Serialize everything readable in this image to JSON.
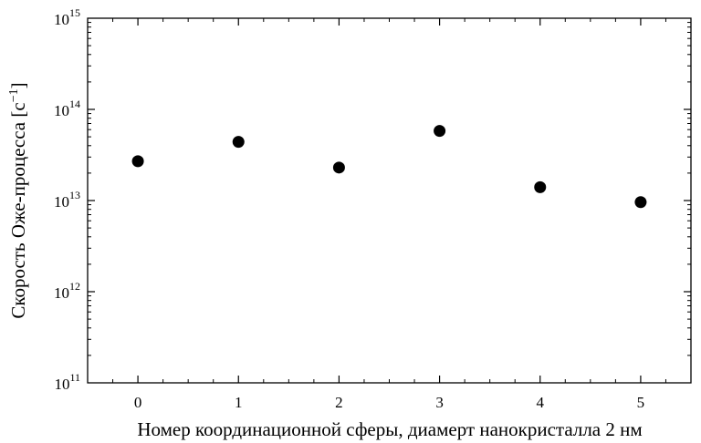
{
  "chart_data": {
    "type": "scatter",
    "xlabel": "Номер координационной сферы, диамерт нанокристалла 2 нм",
    "ylabel": {
      "text": "Скорость Оже-процесса [с",
      "superscript": "−1",
      "close": "]"
    },
    "xlim": [
      -0.5,
      5.5
    ],
    "ylim": [
      100000000000.0,
      1000000000000000.0
    ],
    "yscale": "log",
    "xticks": [
      {
        "value": 0,
        "label": "0"
      },
      {
        "value": 1,
        "label": "1"
      },
      {
        "value": 2,
        "label": "2"
      },
      {
        "value": 3,
        "label": "3"
      },
      {
        "value": 4,
        "label": "4"
      },
      {
        "value": 5,
        "label": "5"
      }
    ],
    "yticks": [
      {
        "value": 100000000000.0,
        "base": "10",
        "exp": "11"
      },
      {
        "value": 1000000000000.0,
        "base": "10",
        "exp": "12"
      },
      {
        "value": 10000000000000.0,
        "base": "10",
        "exp": "13"
      },
      {
        "value": 100000000000000.0,
        "base": "10",
        "exp": "14"
      },
      {
        "value": 1000000000000000.0,
        "base": "10",
        "exp": "15"
      }
    ],
    "grid": false,
    "marker_color": "#000000",
    "series": [
      {
        "points": [
          {
            "x": 0,
            "y": 27000000000000.0
          },
          {
            "x": 1,
            "y": 44000000000000.0
          },
          {
            "x": 2,
            "y": 23000000000000.0
          },
          {
            "x": 3,
            "y": 58000000000000.0
          },
          {
            "x": 4,
            "y": 14000000000000.0
          },
          {
            "x": 5,
            "y": 9600000000000.0
          }
        ]
      }
    ]
  }
}
